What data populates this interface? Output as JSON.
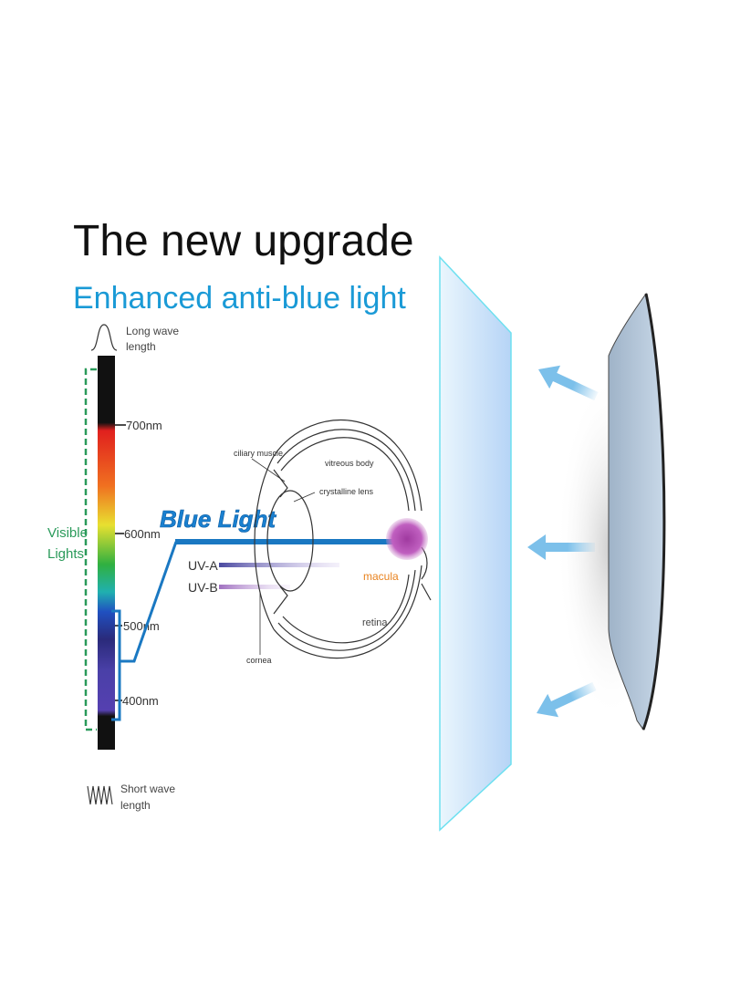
{
  "header": {
    "title": "The new upgrade",
    "subtitle": "Enhanced anti-blue light"
  },
  "spectrum": {
    "long_wave_line1": "Long wave",
    "long_wave_line2": "length",
    "short_wave_line1": "Short wave",
    "short_wave_line2": "length",
    "ticks": [
      "700nm",
      "600nm",
      "500nm",
      "400nm"
    ],
    "visible_line1": "Visible",
    "visible_line2": "Lights"
  },
  "rays": {
    "blue_light": "Blue Light",
    "uva": "UV-A",
    "uvb": "UV-B"
  },
  "eye": {
    "ciliary_muscle": "ciliary muscle",
    "vitreous_body": "vitreous body",
    "crystalline_lens": "crystalline lens",
    "macula": "macula",
    "retina": "retina",
    "cornea": "cornea"
  },
  "colors": {
    "subtitle": "#1a9ad6",
    "blue_light": "#1a78c2",
    "visible_lights": "#2a9a5a",
    "macula": "#e8821e",
    "filter_edge": "#6de0f0",
    "arrows": "#7cc0ea"
  }
}
